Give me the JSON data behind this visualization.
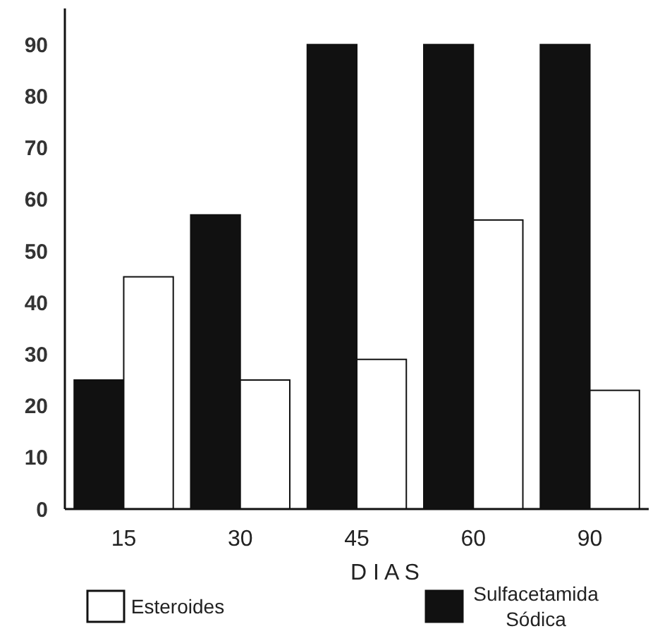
{
  "chart_data": {
    "type": "bar",
    "xlabel": "D I A S",
    "categories": [
      "15",
      "30",
      "45",
      "60",
      "90"
    ],
    "series": [
      {
        "name": "Sulfacetamida Sódica",
        "color": "#111111",
        "values": [
          25,
          57,
          90,
          90,
          90
        ]
      },
      {
        "name": "Esteroides",
        "color": "#ffffff",
        "values": [
          45,
          25,
          29,
          56,
          23
        ]
      }
    ],
    "ylim": [
      0,
      97
    ],
    "yticks": [
      0,
      10,
      20,
      30,
      40,
      50,
      60,
      70,
      80,
      90
    ],
    "grid": false,
    "legend": "bottom"
  }
}
